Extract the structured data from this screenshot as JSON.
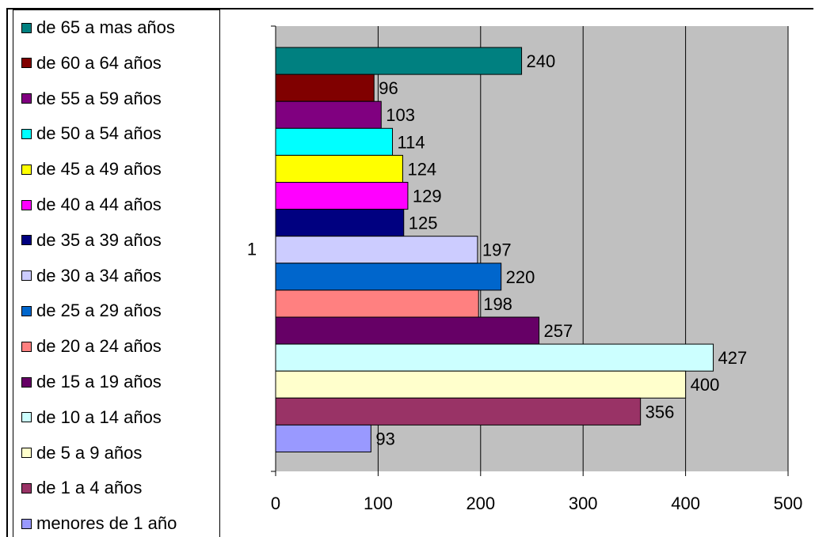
{
  "chart_data": {
    "type": "bar",
    "orientation": "horizontal",
    "category_label": "1",
    "xlim": [
      0,
      500
    ],
    "xticks": [
      0,
      100,
      200,
      300,
      400,
      500
    ],
    "grid": true,
    "legend_position": "left",
    "plot_background": "#c0c0c0",
    "series": [
      {
        "name": "de 65 a mas años",
        "value": 240,
        "color": "#008080"
      },
      {
        "name": "de 60 a 64 años",
        "value": 96,
        "color": "#800000"
      },
      {
        "name": "de 55 a 59 años",
        "value": 103,
        "color": "#800080"
      },
      {
        "name": "de 50 a 54 años",
        "value": 114,
        "color": "#00ffff"
      },
      {
        "name": "de 45 a 49 años",
        "value": 124,
        "color": "#ffff00"
      },
      {
        "name": "de 40 a 44 años",
        "value": 129,
        "color": "#ff00ff"
      },
      {
        "name": "de 35 a 39 años",
        "value": 125,
        "color": "#000080"
      },
      {
        "name": "de 30 a 34 años",
        "value": 197,
        "color": "#ccccff"
      },
      {
        "name": "de 25 a 29 años",
        "value": 220,
        "color": "#0066cc"
      },
      {
        "name": "de 20 a 24 años",
        "value": 198,
        "color": "#ff8080"
      },
      {
        "name": "de 15 a 19 años",
        "value": 257,
        "color": "#660066"
      },
      {
        "name": "de 10 a 14 años",
        "value": 427,
        "color": "#ccffff"
      },
      {
        "name": "de 5 a 9 años",
        "value": 400,
        "color": "#ffffcc"
      },
      {
        "name": "de 1 a 4 años",
        "value": 356,
        "color": "#993366"
      },
      {
        "name": "menores de 1 año",
        "value": 93,
        "color": "#9999ff"
      }
    ]
  }
}
